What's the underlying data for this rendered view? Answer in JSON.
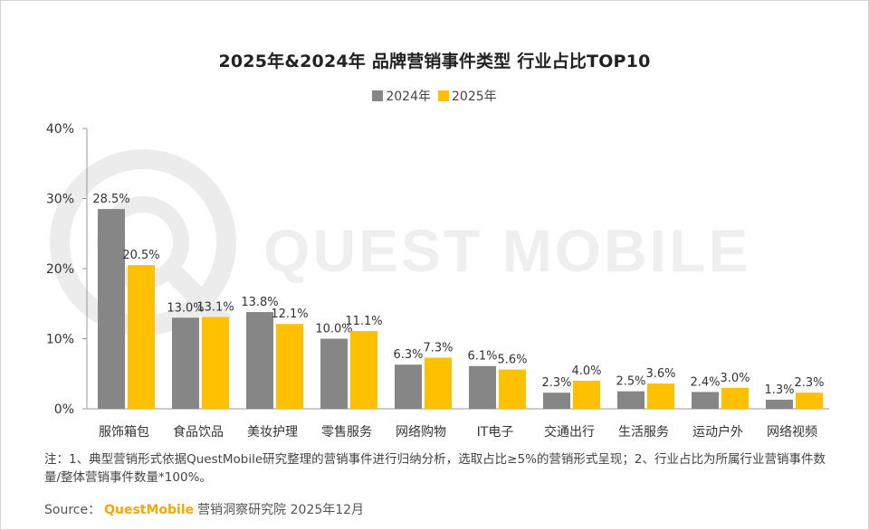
{
  "title": "2025年&2024年 品牌营销事件类型 行业占比TOP10",
  "watermark": "QUEST MOBILE",
  "colors": {
    "series_2024": "#868686",
    "series_2025": "#ffc000",
    "axis": "#999999",
    "text": "#333333"
  },
  "chart_data": {
    "type": "bar",
    "categories": [
      "服饰箱包",
      "食品饮品",
      "美妆护理",
      "零售服务",
      "网络购物",
      "IT电子",
      "交通出行",
      "生活服务",
      "运动户外",
      "网络视频"
    ],
    "series": [
      {
        "name": "2024年",
        "values": [
          28.5,
          13.0,
          13.8,
          10.0,
          6.3,
          6.1,
          2.3,
          2.5,
          2.4,
          1.3
        ],
        "labels": [
          "28.5%",
          "13.0%",
          "13.8%",
          "10.0%",
          "6.3%",
          "6.1%",
          "2.3%",
          "2.5%",
          "2.4%",
          "1.3%"
        ]
      },
      {
        "name": "2025年",
        "values": [
          20.5,
          13.1,
          12.1,
          11.1,
          7.3,
          5.6,
          4.0,
          3.6,
          3.0,
          2.3
        ],
        "labels": [
          "20.5%",
          "13.1%",
          "12.1%",
          "11.1%",
          "7.3%",
          "5.6%",
          "4.0%",
          "3.6%",
          "3.0%",
          "2.3%"
        ]
      }
    ],
    "yticks": [
      "0%",
      "10%",
      "20%",
      "30%",
      "40%"
    ],
    "ylim": [
      0,
      40
    ],
    "legend_position": "top-center",
    "grid": false
  },
  "note": "注：1、典型营销形式依据QuestMobile研究整理的营销事件进行归纳分析，选取占比≥5%的营销形式呈现；2、行业占比为所属行业营销事件数量/整体营销事件数量*100%。",
  "source": {
    "label": "Source：",
    "brand": "QuestMobile",
    "text": "营销洞察研究院 2025年12月"
  }
}
